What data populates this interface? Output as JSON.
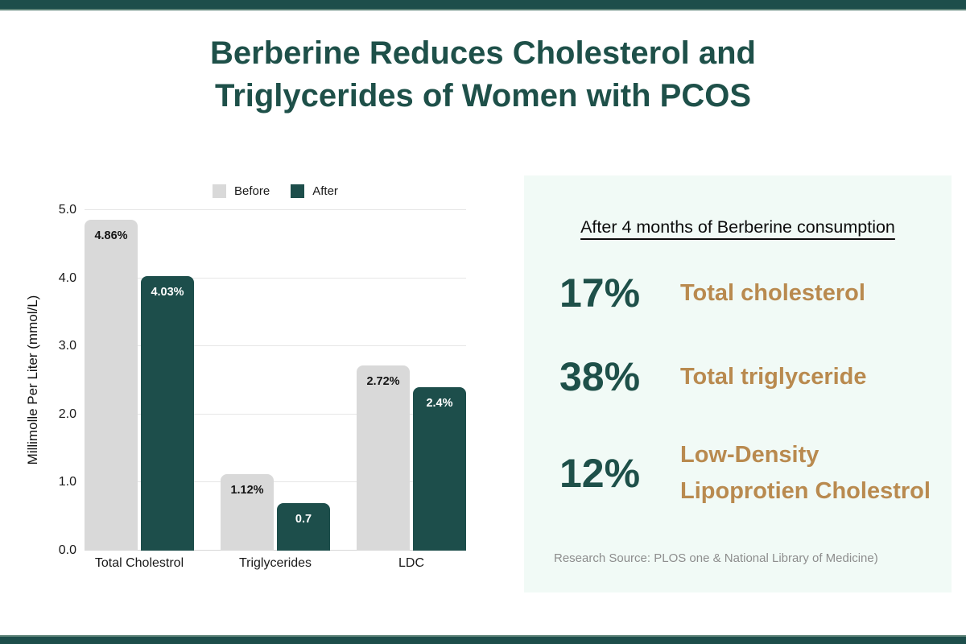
{
  "page": {
    "title_lines": [
      "Berberine Reduces Cholesterol and",
      "Triglycerides of Women with PCOS"
    ]
  },
  "colors": {
    "teal": "#1e5049",
    "teal_bar": "#1d4e4b",
    "gray_bar": "#d9d9d9",
    "gold": "#b98a4f",
    "panel_bg": "#f1faf6",
    "grid": "#e6e6e6"
  },
  "chart_data": {
    "type": "bar",
    "categories": [
      "Total Cholestrol",
      "Triglycerides",
      "LDC"
    ],
    "series": [
      {
        "name": "Before",
        "color": "#d9d9d9",
        "values": [
          4.86,
          1.12,
          2.72
        ],
        "labels": [
          "4.86%",
          "1.12%",
          "2.72%"
        ]
      },
      {
        "name": "After",
        "color": "#1d4e4b",
        "values": [
          4.03,
          0.7,
          2.4
        ],
        "labels": [
          "4.03%",
          "0.7",
          "2.4%"
        ]
      }
    ],
    "title": "",
    "xlabel": "",
    "ylabel": "Millimolle Per Liter (mmol/L)",
    "ylim": [
      0,
      5
    ],
    "yticks": [
      5.0,
      4.0,
      3.0,
      2.0,
      1.0,
      0.0
    ],
    "grid": true,
    "legend_position": "top"
  },
  "panel": {
    "heading": "After 4 months of Berberine consumption",
    "stats": [
      {
        "value": "17%",
        "label": "Total cholesterol"
      },
      {
        "value": "38%",
        "label": "Total triglyceride"
      },
      {
        "value": "12%",
        "label": "Low-Density Lipoprotien Cholestrol"
      }
    ],
    "source": "Research Source: PLOS one & National Library of Medicine)"
  }
}
